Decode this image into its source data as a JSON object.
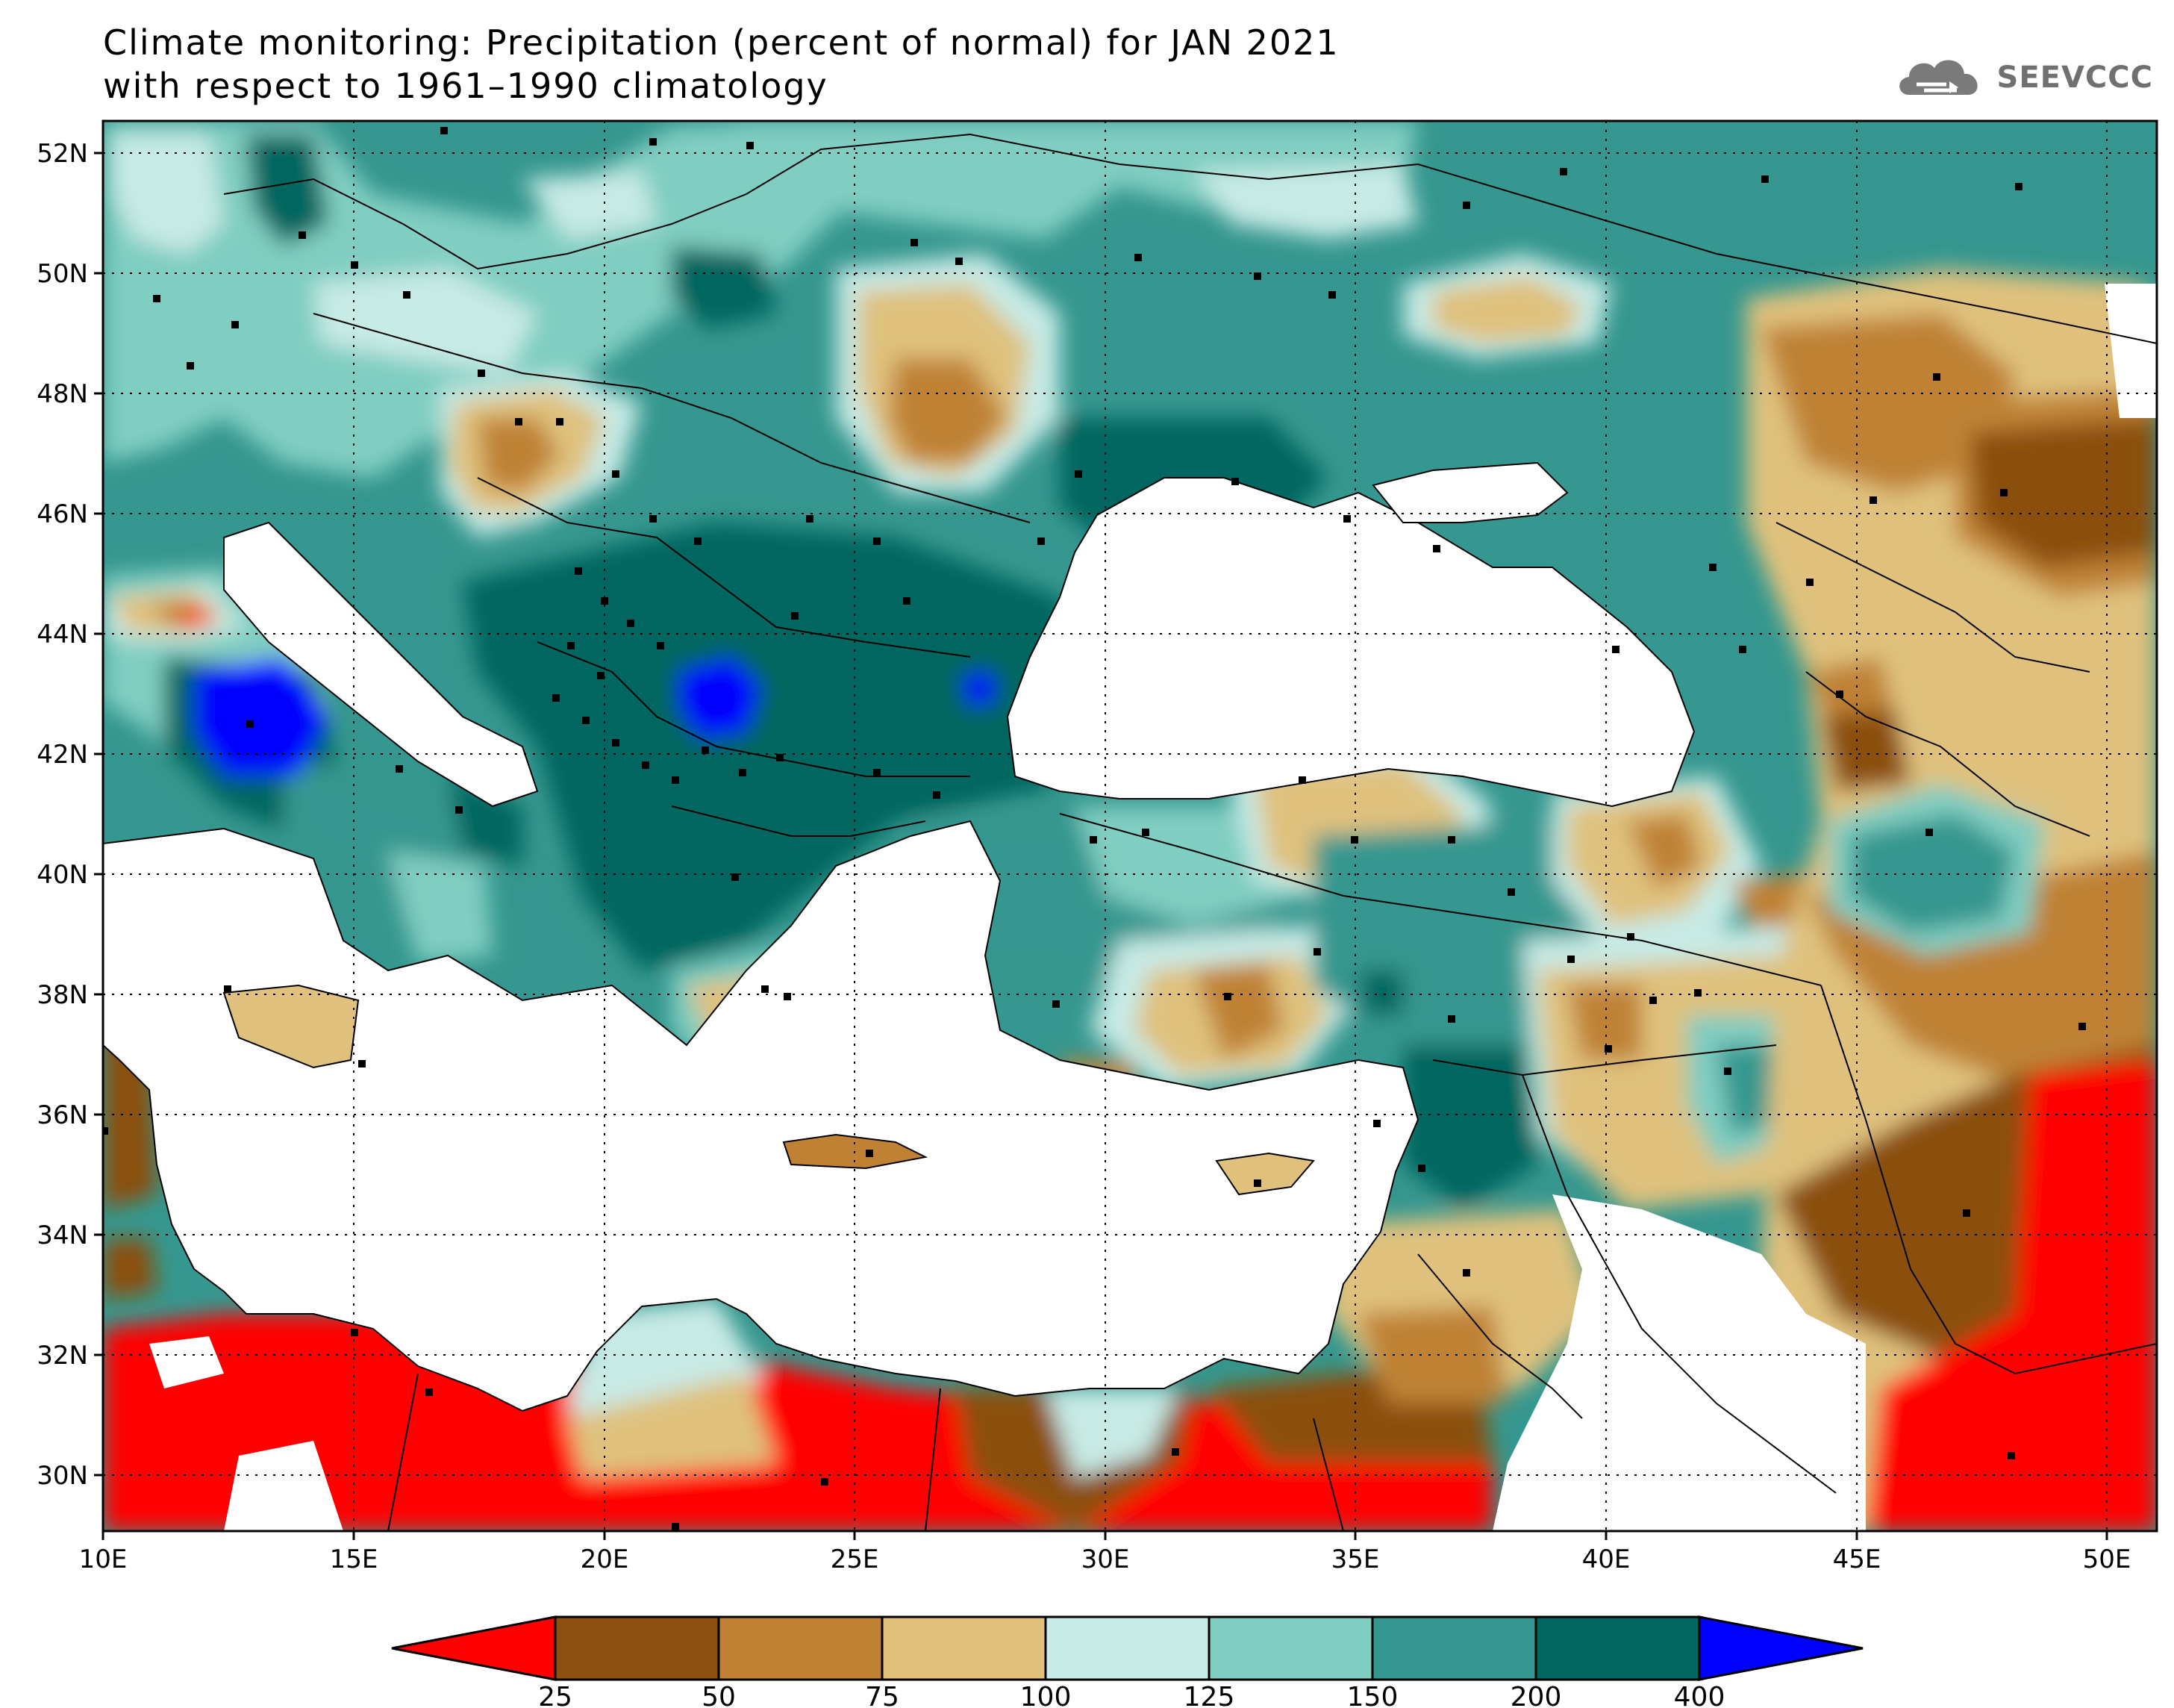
{
  "title_line1": "Climate monitoring: Precipitation (percent of normal) for JAN 2021",
  "title_line2": "with respect to 1961–1990 climatology",
  "logo": {
    "text": "SEEVCCC",
    "icon": "cloud-icon",
    "color": "#707070"
  },
  "map": {
    "lon_range": [
      10,
      51
    ],
    "lat_range": [
      29,
      52.5
    ],
    "x_ticks": [
      "10E",
      "15E",
      "20E",
      "25E",
      "30E",
      "35E",
      "40E",
      "45E",
      "50E"
    ],
    "y_ticks": [
      "52N",
      "50N",
      "48N",
      "46N",
      "44N",
      "42N",
      "40N",
      "38N",
      "36N",
      "34N",
      "32N",
      "30N"
    ],
    "gridlines": "dotted",
    "colors": {
      "land_sea_mask": "#ffffff"
    }
  },
  "colorbar": {
    "labels": [
      "25",
      "50",
      "75",
      "100",
      "125",
      "150",
      "200",
      "400"
    ],
    "colors": [
      "#ff0000",
      "#8b5011",
      "#bf8235",
      "#dfc17d",
      "#c7eae5",
      "#80cdc1",
      "#35978f",
      "#01665e",
      "#0000ff"
    ]
  }
}
